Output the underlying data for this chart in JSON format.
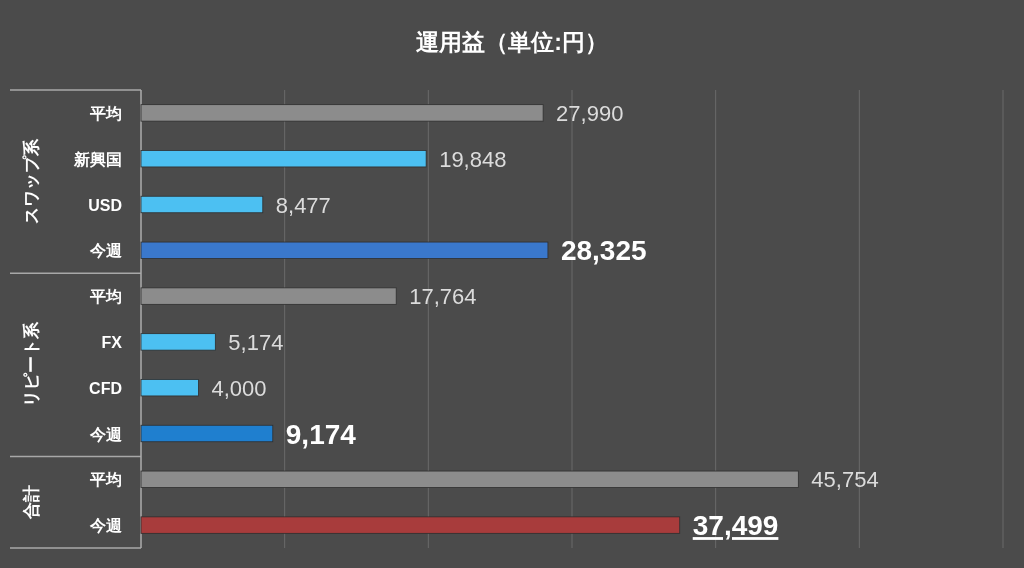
{
  "chart_data": {
    "type": "bar",
    "orientation": "horizontal",
    "title": "運用益（単位:円）",
    "categories": [
      "平均",
      "新興国",
      "USD",
      "今週",
      "平均",
      "FX",
      "CFD",
      "今週",
      "平均",
      "今週"
    ],
    "values": [
      27990,
      19848,
      8477,
      28325,
      17764,
      5174,
      4000,
      9174,
      45754,
      37499
    ],
    "value_labels": [
      "27,990",
      "19,848",
      "8,477",
      "28,325",
      "17,764",
      "5,174",
      "4,000",
      "9,174",
      "45,754",
      "37,499"
    ],
    "colors": [
      "#8c8c8c",
      "#4cc0f2",
      "#4cc0f2",
      "#3a78cc",
      "#8c8c8c",
      "#4cc0f2",
      "#4cc0f2",
      "#1f7fcf",
      "#8c8c8c",
      "#a83c3c"
    ],
    "grid": "x",
    "tick_labels": "y",
    "annotations": [
      "スワップ系",
      "リピート系",
      "合計"
    ]
  }
}
